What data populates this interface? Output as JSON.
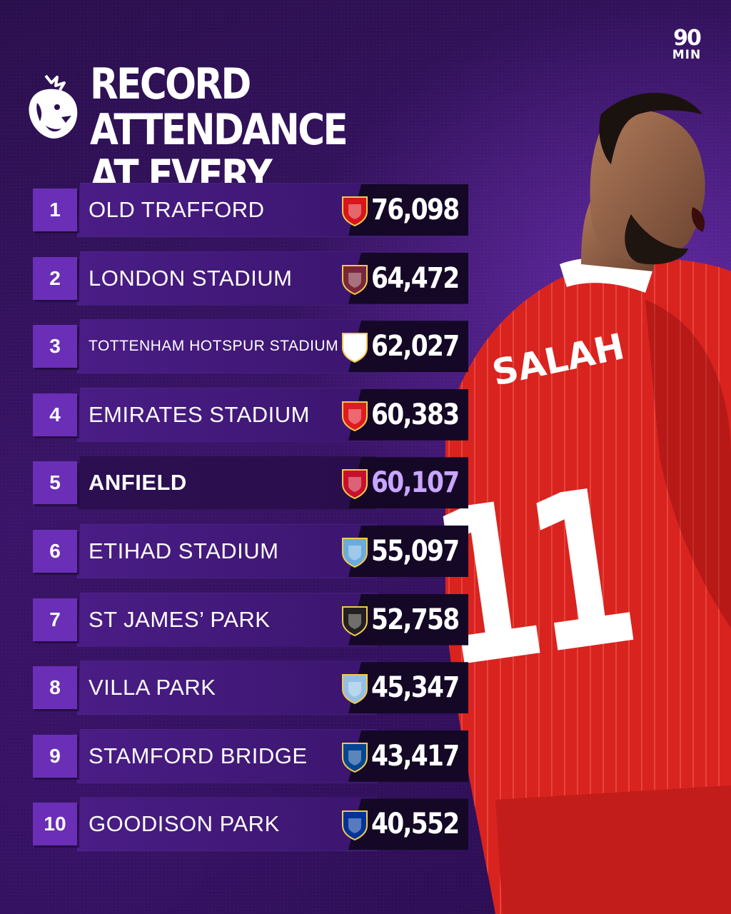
{
  "header": {
    "title_line1": "RECORD ATTENDANCE",
    "title_line2": "AT EVERY STADIUM",
    "brand_top": "90",
    "brand_bottom": "MIN"
  },
  "player": {
    "shirt_name": "SALAH",
    "shirt_number": "11"
  },
  "rows": [
    {
      "rank": "1",
      "stadium": "OLD TRAFFORD",
      "attendance": "76,098",
      "crest": "man-utd-crest",
      "crest_color": "#d8141c"
    },
    {
      "rank": "2",
      "stadium": "LONDON STADIUM",
      "attendance": "64,472",
      "crest": "west-ham-crest",
      "crest_color": "#7a263a"
    },
    {
      "rank": "3",
      "stadium": "TOTTENHAM HOTSPUR STADIUM",
      "attendance": "62,027",
      "crest": "tottenham-crest",
      "crest_color": "#ffffff"
    },
    {
      "rank": "4",
      "stadium": "EMIRATES STADIUM",
      "attendance": "60,383",
      "crest": "arsenal-crest",
      "crest_color": "#e01a22"
    },
    {
      "rank": "5",
      "stadium": "ANFIELD",
      "attendance": "60,107",
      "crest": "liverpool-crest",
      "crest_color": "#c8102e"
    },
    {
      "rank": "6",
      "stadium": "ETIHAD STADIUM",
      "attendance": "55,097",
      "crest": "man-city-crest",
      "crest_color": "#6cabdd"
    },
    {
      "rank": "7",
      "stadium": "ST JAMES’ PARK",
      "attendance": "52,758",
      "crest": "newcastle-crest",
      "crest_color": "#241f20"
    },
    {
      "rank": "8",
      "stadium": "VILLA PARK",
      "attendance": "45,347",
      "crest": "aston-villa-crest",
      "crest_color": "#95bfe5"
    },
    {
      "rank": "9",
      "stadium": "STAMFORD BRIDGE",
      "attendance": "43,417",
      "crest": "chelsea-crest",
      "crest_color": "#034694"
    },
    {
      "rank": "10",
      "stadium": "GOODISON PARK",
      "attendance": "40,552",
      "crest": "everton-crest",
      "crest_color": "#003399"
    }
  ],
  "colors": {
    "background": "#331260",
    "rank_box": "#6a2fb6",
    "value_box": "#140826",
    "highlight": "#c9a6ff",
    "shirt": "#d9231f"
  }
}
